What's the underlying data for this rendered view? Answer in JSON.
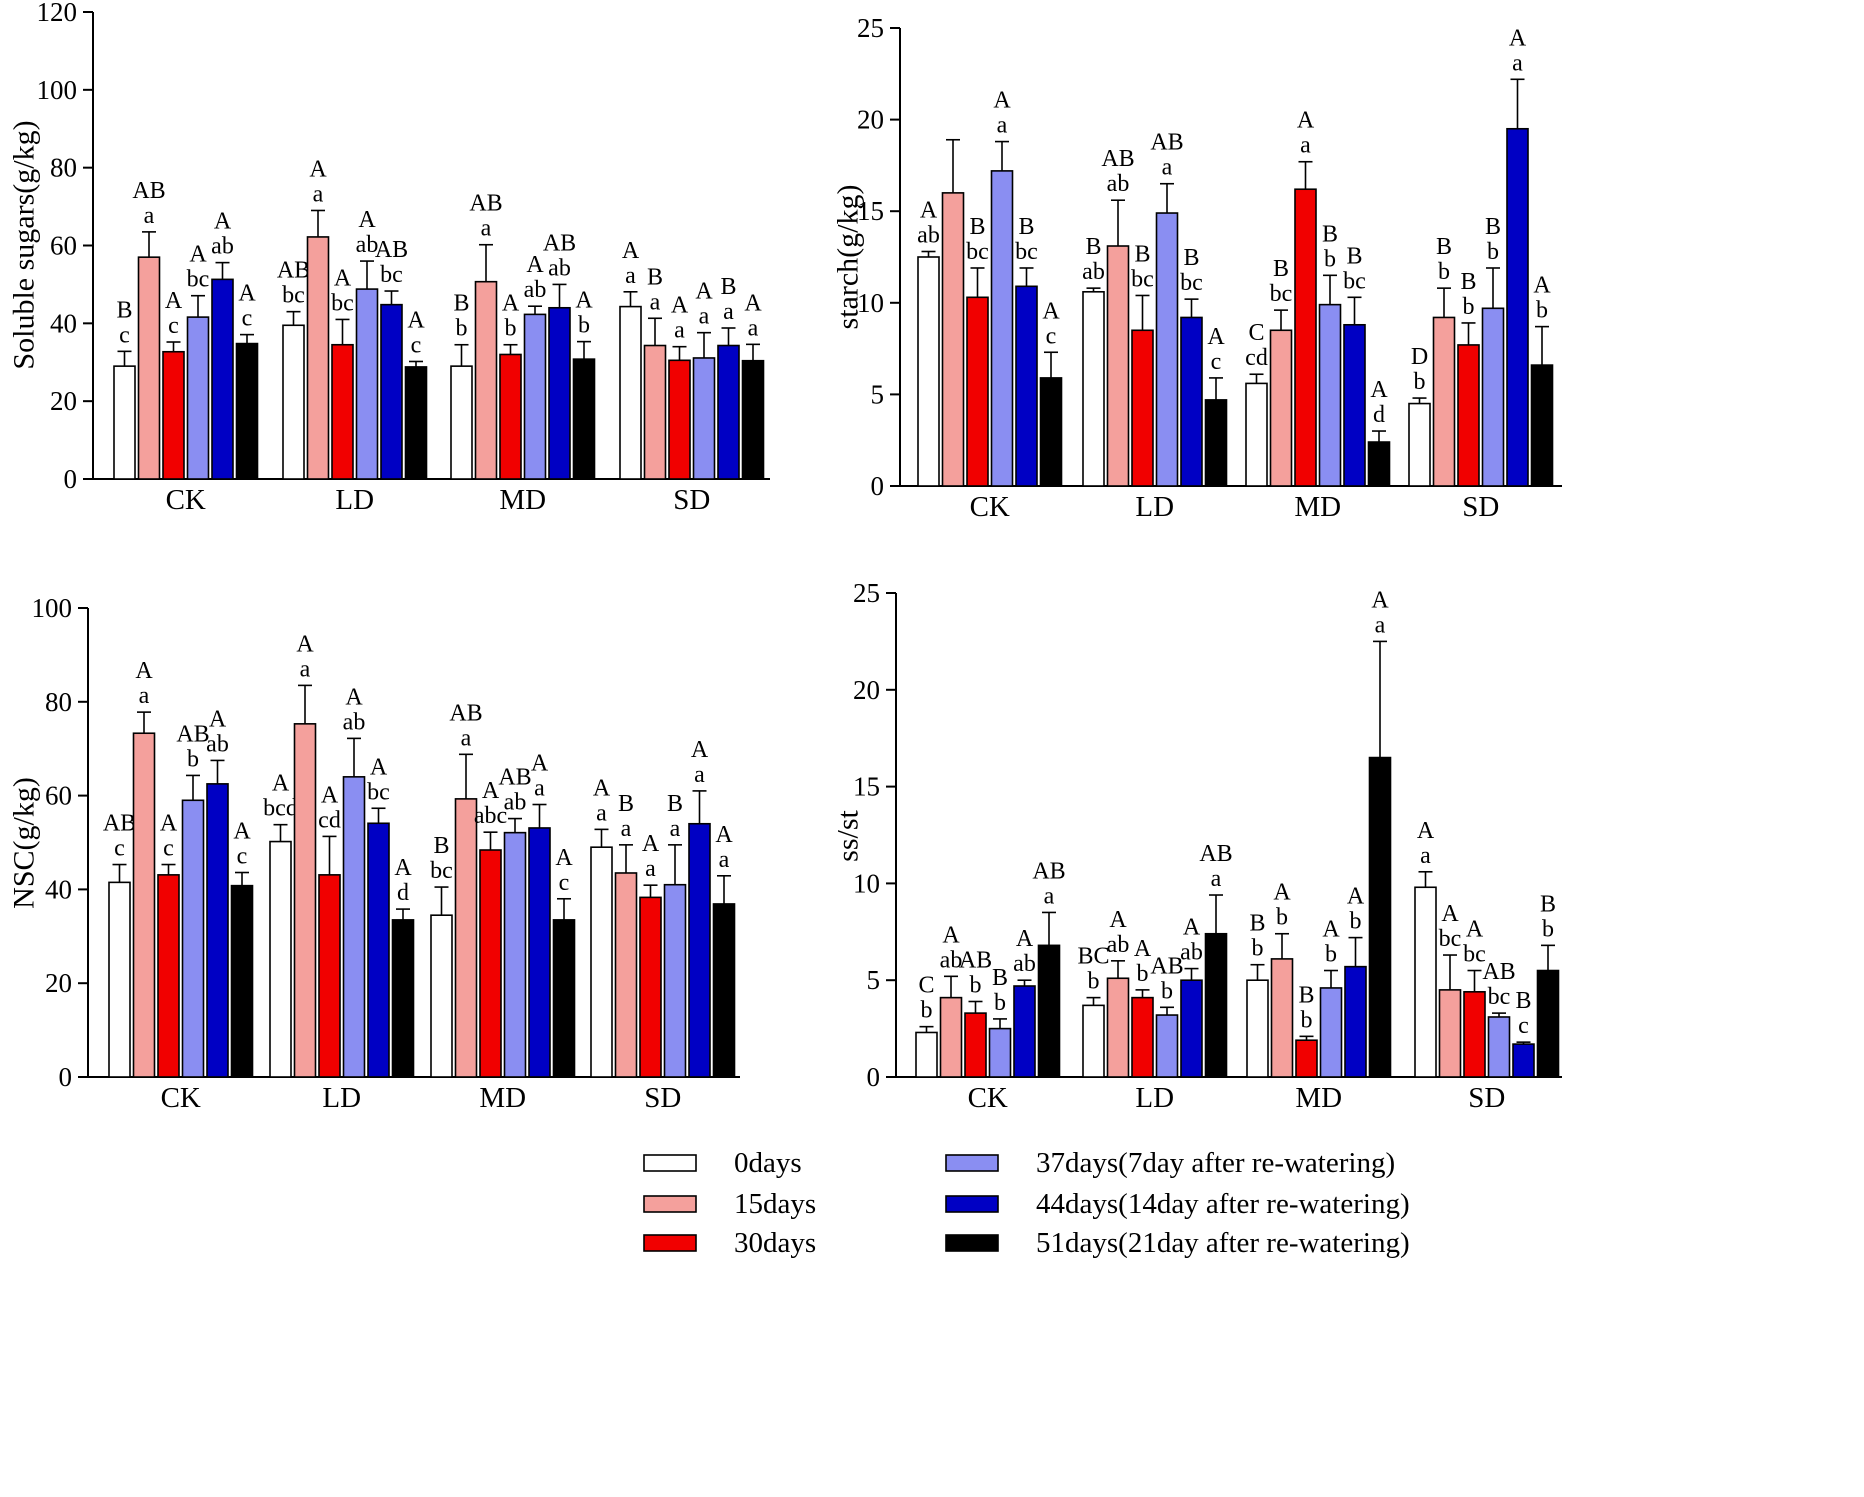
{
  "chart_data": [
    {
      "type": "bar",
      "title": "",
      "ylabel": "Soluble sugars(g/kg)",
      "xlabel": "",
      "categories": [
        "CK",
        "LD",
        "MD",
        "SD"
      ],
      "ylim": [
        0,
        120
      ],
      "yticks": [
        "0",
        "20",
        "40",
        "60",
        "80",
        "100",
        "120"
      ],
      "series": [
        {
          "name": "0days",
          "values": [
            29,
            39.5,
            29,
            44.3
          ],
          "errors": [
            3.8,
            3.5,
            5.5,
            3.8
          ],
          "upper": [
            "B",
            "AB",
            "B",
            "A"
          ],
          "lower": [
            "c",
            "bc",
            "b",
            "a"
          ]
        },
        {
          "name": "15days",
          "values": [
            57,
            62.2,
            50.7,
            34.3
          ],
          "errors": [
            6.5,
            6.8,
            9.5,
            7
          ],
          "upper": [
            "AB",
            "A",
            "AB",
            "B"
          ],
          "lower": [
            "a",
            "a",
            "a",
            "a"
          ]
        },
        {
          "name": "30days",
          "values": [
            32.7,
            34.5,
            32,
            30.5
          ],
          "errors": [
            2.5,
            6.5,
            2.5,
            3.5
          ],
          "upper": [
            "A",
            "A",
            "A",
            "A"
          ],
          "lower": [
            "c",
            "bc",
            "b",
            "a"
          ]
        },
        {
          "name": "37days(7day after re-watering)",
          "values": [
            41.6,
            48.8,
            42.3,
            31.1
          ],
          "errors": [
            5.5,
            7.2,
            2.1,
            6.5
          ],
          "upper": [
            "A",
            "A",
            "A",
            "A"
          ],
          "lower": [
            "bc",
            "ab",
            "ab",
            "a"
          ]
        },
        {
          "name": "44days(14day after re-watering)",
          "values": [
            51.3,
            44.8,
            44,
            34.3
          ],
          "errors": [
            4.3,
            3.5,
            6,
            4.5
          ],
          "upper": [
            "A",
            "AB",
            "AB",
            "B"
          ],
          "lower": [
            "ab",
            "bc",
            "ab",
            "a"
          ]
        },
        {
          "name": "51days(21day after re-watering)",
          "values": [
            34.8,
            28.8,
            30.8,
            30.4
          ],
          "errors": [
            2.3,
            1.4,
            4.5,
            4.2
          ],
          "upper": [
            "A",
            "A",
            "A",
            "A"
          ],
          "lower": [
            "c",
            "c",
            "b",
            "a"
          ]
        }
      ]
    },
    {
      "type": "bar",
      "title": "",
      "ylabel": "starch(g/kg)",
      "xlabel": "",
      "categories": [
        "CK",
        "LD",
        "MD",
        "SD"
      ],
      "ylim": [
        0,
        25
      ],
      "yticks": [
        "0",
        "5",
        "10",
        "15",
        "20",
        "25"
      ],
      "series": [
        {
          "name": "0days",
          "values": [
            12.5,
            10.6,
            5.6,
            4.5
          ],
          "errors": [
            0.3,
            0.2,
            0.5,
            0.3
          ],
          "upper": [
            "A",
            "B",
            "C",
            "D"
          ],
          "lower": [
            "ab",
            "ab",
            "cd",
            "b"
          ]
        },
        {
          "name": "15days",
          "values": [
            16,
            13.1,
            8.5,
            9.2
          ],
          "errors": [
            2.9,
            2.5,
            1.1,
            1.6
          ],
          "upper": [
            "",
            "AB",
            "B",
            "B"
          ],
          "lower": [
            "",
            "ab",
            "bc",
            "b"
          ]
        },
        {
          "name": "30days",
          "values": [
            10.3,
            8.5,
            16.2,
            7.7
          ],
          "errors": [
            1.6,
            1.9,
            1.5,
            1.2
          ],
          "upper": [
            "B",
            "B",
            "A",
            "B"
          ],
          "lower": [
            "bc",
            "bc",
            "a",
            "b"
          ]
        },
        {
          "name": "37days(7day after re-watering)",
          "values": [
            17.2,
            14.9,
            9.9,
            9.7
          ],
          "errors": [
            1.6,
            1.6,
            1.6,
            2.2
          ],
          "upper": [
            "A",
            "AB",
            "B",
            "B"
          ],
          "lower": [
            "a",
            "a",
            "b",
            "b"
          ]
        },
        {
          "name": "44days(14day after re-watering)",
          "values": [
            10.9,
            9.2,
            8.8,
            19.5
          ],
          "errors": [
            1,
            1,
            1.5,
            2.7
          ],
          "upper": [
            "B",
            "B",
            "B",
            "A"
          ],
          "lower": [
            "bc",
            "bc",
            "bc",
            "a"
          ]
        },
        {
          "name": "51days(21day after re-watering)",
          "values": [
            5.9,
            4.7,
            2.4,
            6.6
          ],
          "errors": [
            1.4,
            1.2,
            0.6,
            2.1
          ],
          "upper": [
            "A",
            "A",
            "A",
            "A"
          ],
          "lower": [
            "c",
            "c",
            "d",
            "b"
          ]
        }
      ]
    },
    {
      "type": "bar",
      "title": "",
      "ylabel": "NSC(g/kg)",
      "xlabel": "",
      "categories": [
        "CK",
        "LD",
        "MD",
        "SD"
      ],
      "ylim": [
        0,
        100
      ],
      "yticks": [
        "0",
        "20",
        "40",
        "60",
        "80",
        "100"
      ],
      "series": [
        {
          "name": "0days",
          "values": [
            41.5,
            50.2,
            34.5,
            49
          ],
          "errors": [
            3.8,
            3.6,
            6,
            3.8
          ],
          "upper": [
            "AB",
            "A",
            "B",
            "A"
          ],
          "lower": [
            "c",
            "bcd",
            "bc",
            "a"
          ]
        },
        {
          "name": "15days",
          "values": [
            73.3,
            75.3,
            59.3,
            43.5
          ],
          "errors": [
            4.5,
            8.2,
            9.5,
            6
          ],
          "upper": [
            "A",
            "A",
            "AB",
            "B"
          ],
          "lower": [
            "a",
            "a",
            "a",
            "a"
          ]
        },
        {
          "name": "30days",
          "values": [
            43.1,
            43.1,
            48.4,
            38.3
          ],
          "errors": [
            2.2,
            8.2,
            3.8,
            2.6
          ],
          "upper": [
            "A",
            "A",
            "A",
            "A"
          ],
          "lower": [
            "c",
            "cd",
            "abc",
            "a"
          ]
        },
        {
          "name": "37days(7day after re-watering)",
          "values": [
            59,
            64,
            52.1,
            41
          ],
          "errors": [
            5.3,
            8.2,
            3,
            8.5
          ],
          "upper": [
            "AB",
            "A",
            "AB",
            "B"
          ],
          "lower": [
            "b",
            "ab",
            "ab",
            "a"
          ]
        },
        {
          "name": "44days(14day after re-watering)",
          "values": [
            62.5,
            54.1,
            53.1,
            54
          ],
          "errors": [
            5,
            3.2,
            5,
            7
          ],
          "upper": [
            "A",
            "A",
            "A",
            "A"
          ],
          "lower": [
            "ab",
            "bc",
            "a",
            "a"
          ]
        },
        {
          "name": "51days(21day after re-watering)",
          "values": [
            40.8,
            33.5,
            33.5,
            36.9
          ],
          "errors": [
            2.8,
            2.3,
            4.5,
            6
          ],
          "upper": [
            "A",
            "A",
            "A",
            "A"
          ],
          "lower": [
            "c",
            "d",
            "c",
            "a"
          ]
        }
      ]
    },
    {
      "type": "bar",
      "title": "",
      "ylabel": "ss/st",
      "xlabel": "",
      "categories": [
        "CK",
        "LD",
        "MD",
        "SD"
      ],
      "ylim": [
        0,
        25
      ],
      "yticks": [
        "0",
        "5",
        "10",
        "15",
        "20",
        "25"
      ],
      "series": [
        {
          "name": "0days",
          "values": [
            2.3,
            3.7,
            5,
            9.8
          ],
          "errors": [
            0.3,
            0.4,
            0.8,
            0.8
          ],
          "upper": [
            "C",
            "BC",
            "B",
            "A"
          ],
          "lower": [
            "b",
            "b",
            "b",
            "a"
          ]
        },
        {
          "name": "15days",
          "values": [
            4.1,
            5.1,
            6.1,
            4.5
          ],
          "errors": [
            1.1,
            0.9,
            1.3,
            1.8
          ],
          "upper": [
            "A",
            "A",
            "A",
            "A"
          ],
          "lower": [
            "ab",
            "ab",
            "b",
            "bc"
          ]
        },
        {
          "name": "30days",
          "values": [
            3.3,
            4.1,
            1.9,
            4.4
          ],
          "errors": [
            0.6,
            0.4,
            0.2,
            1.1
          ],
          "upper": [
            "AB",
            "A",
            "B",
            "A"
          ],
          "lower": [
            "b",
            "b",
            "b",
            "bc"
          ]
        },
        {
          "name": "37days(7day after re-watering)",
          "values": [
            2.5,
            3.2,
            4.6,
            3.1
          ],
          "errors": [
            0.5,
            0.4,
            0.9,
            0.2
          ],
          "upper": [
            "B",
            "AB",
            "A",
            "AB"
          ],
          "lower": [
            "b",
            "b",
            "b",
            "bc"
          ]
        },
        {
          "name": "44days(14day after re-watering)",
          "values": [
            4.7,
            5,
            5.7,
            1.7
          ],
          "errors": [
            0.3,
            0.6,
            1.5,
            0.1
          ],
          "upper": [
            "A",
            "A",
            "A",
            "B"
          ],
          "lower": [
            "ab",
            "ab",
            "b",
            "c"
          ]
        },
        {
          "name": "51days(21day after re-watering)",
          "values": [
            6.8,
            7.4,
            16.5,
            5.5
          ],
          "errors": [
            1.7,
            2,
            6,
            1.3
          ],
          "upper": [
            "AB",
            "AB",
            "A",
            "B"
          ],
          "lower": [
            "a",
            "a",
            "a",
            "b"
          ]
        }
      ]
    }
  ],
  "legend": {
    "items": [
      "0days",
      "15days",
      "30days",
      "37days(7day after re-watering)",
      "44days(14day after re-watering)",
      "51days(21day after re-watering)"
    ]
  },
  "colors": {
    "series": [
      "#ffffff",
      "#f4a09c",
      "#f10000",
      "#8a8ef2",
      "#0000c4",
      "#000000"
    ],
    "axis": "#000000"
  }
}
